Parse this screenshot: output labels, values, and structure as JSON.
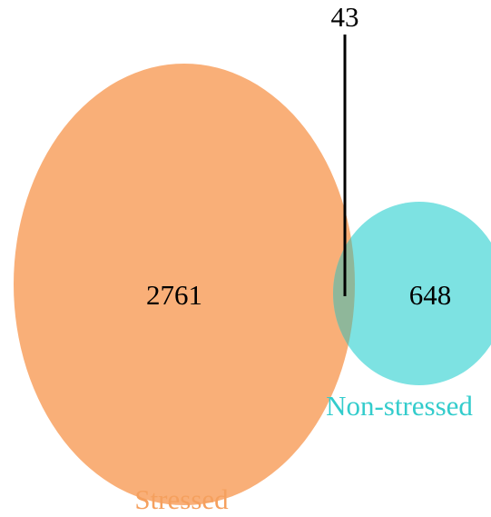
{
  "sets": [
    {
      "label": "Stressed",
      "count": "2761"
    },
    {
      "label": "Non-stressed",
      "count": "648"
    }
  ],
  "intersection": {
    "count": "43"
  }
}
